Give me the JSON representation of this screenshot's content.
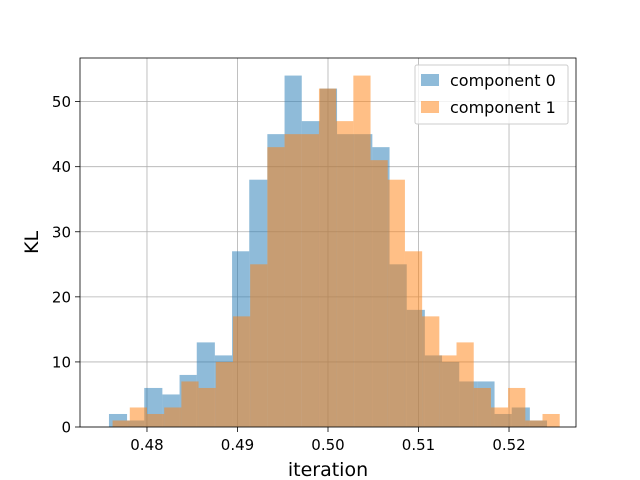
{
  "chart_data": {
    "type": "histogram",
    "title": "",
    "xlabel": "iteration",
    "ylabel": "KL",
    "xlim": [
      0.4726,
      0.5274
    ],
    "ylim": [
      0,
      56.7
    ],
    "xticks": [
      "0.48",
      "0.49",
      "0.50",
      "0.51",
      "0.52"
    ],
    "yticks": [
      "0",
      "10",
      "20",
      "30",
      "40",
      "50"
    ],
    "grid": true,
    "legend_position": "top-right",
    "bin_edges": [
      0.4751,
      0.477,
      0.4789,
      0.4808,
      0.4828,
      0.4847,
      0.4866,
      0.4885,
      0.4905,
      0.4924,
      0.4943,
      0.4962,
      0.4982,
      0.5001,
      0.502,
      0.5039,
      0.5058,
      0.5078,
      0.5097,
      0.5116,
      0.5135,
      0.5155,
      0.5174,
      0.5193,
      0.5212,
      0.5232,
      0.5251
    ],
    "series": [
      {
        "name": "component 0",
        "color": "#1f77b4",
        "opacity": 0.5,
        "bins": [
          [
            0.4758,
            0.4778,
            2
          ],
          [
            0.4778,
            0.4797,
            1
          ],
          [
            0.4797,
            0.4817,
            6
          ],
          [
            0.4817,
            0.4836,
            5
          ],
          [
            0.4836,
            0.4855,
            8
          ],
          [
            0.4855,
            0.4875,
            13
          ],
          [
            0.4875,
            0.4894,
            11
          ],
          [
            0.4894,
            0.4913,
            27
          ],
          [
            0.4913,
            0.4933,
            38
          ],
          [
            0.4933,
            0.4952,
            45
          ],
          [
            0.4952,
            0.4971,
            54
          ],
          [
            0.4971,
            0.4991,
            47
          ],
          [
            0.4991,
            0.501,
            52
          ],
          [
            0.501,
            0.5029,
            45
          ],
          [
            0.5029,
            0.5049,
            45
          ],
          [
            0.5049,
            0.5068,
            43
          ],
          [
            0.5068,
            0.5087,
            25
          ],
          [
            0.5087,
            0.5107,
            18
          ],
          [
            0.5107,
            0.5126,
            11
          ],
          [
            0.5126,
            0.5145,
            10
          ],
          [
            0.5145,
            0.5165,
            7
          ],
          [
            0.5165,
            0.5184,
            7
          ],
          [
            0.5184,
            0.5203,
            2
          ],
          [
            0.5203,
            0.5223,
            3
          ],
          [
            0.5223,
            0.5242,
            1
          ]
        ]
      },
      {
        "name": "component 1",
        "color": "#ff7f0e",
        "opacity": 0.5,
        "bins": [
          [
            0.4762,
            0.4781,
            1
          ],
          [
            0.4781,
            0.48,
            3
          ],
          [
            0.48,
            0.4819,
            2
          ],
          [
            0.4819,
            0.4838,
            3
          ],
          [
            0.4838,
            0.4857,
            7
          ],
          [
            0.4857,
            0.4876,
            6
          ],
          [
            0.4876,
            0.4895,
            10
          ],
          [
            0.4895,
            0.4914,
            17
          ],
          [
            0.4914,
            0.4933,
            25
          ],
          [
            0.4933,
            0.4952,
            43
          ],
          [
            0.4952,
            0.4971,
            45
          ],
          [
            0.4971,
            0.499,
            45
          ],
          [
            0.499,
            0.5009,
            52
          ],
          [
            0.5009,
            0.5028,
            47
          ],
          [
            0.5028,
            0.5047,
            54
          ],
          [
            0.5047,
            0.5066,
            41
          ],
          [
            0.5066,
            0.5085,
            38
          ],
          [
            0.5085,
            0.5104,
            27
          ],
          [
            0.5104,
            0.5123,
            17
          ],
          [
            0.5123,
            0.5142,
            11
          ],
          [
            0.5142,
            0.5161,
            13
          ],
          [
            0.5161,
            0.518,
            6
          ],
          [
            0.518,
            0.5199,
            3
          ],
          [
            0.5199,
            0.5218,
            6
          ],
          [
            0.5218,
            0.5237,
            1
          ],
          [
            0.5237,
            0.5256,
            2
          ]
        ]
      }
    ]
  }
}
